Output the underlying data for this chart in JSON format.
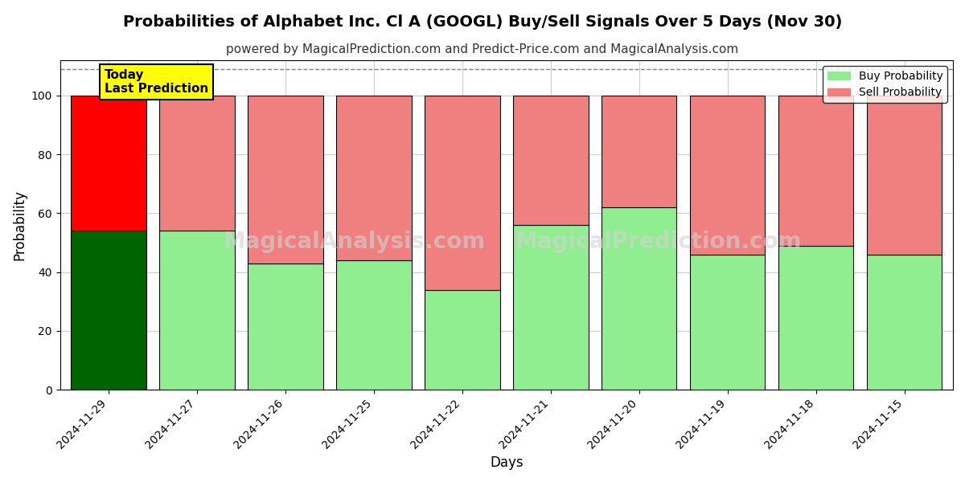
{
  "title": "Probabilities of Alphabet Inc. Cl A (GOOGL) Buy/Sell Signals Over 5 Days (Nov 30)",
  "subtitle": "powered by MagicalPrediction.com and Predict-Price.com and MagicalAnalysis.com",
  "xlabel": "Days",
  "ylabel": "Probability",
  "ylim": [
    0,
    112
  ],
  "yticks": [
    0,
    20,
    40,
    60,
    80,
    100
  ],
  "dates": [
    "2024-11-29",
    "2024-11-27",
    "2024-11-26",
    "2024-11-25",
    "2024-11-22",
    "2024-11-21",
    "2024-11-20",
    "2024-11-19",
    "2024-11-18",
    "2024-11-15"
  ],
  "buy_values": [
    54,
    54,
    43,
    44,
    34,
    56,
    62,
    46,
    49,
    46
  ],
  "sell_values": [
    46,
    46,
    57,
    56,
    66,
    44,
    38,
    54,
    51,
    54
  ],
  "bar_colors_buy": [
    "#006400",
    "#90EE90",
    "#90EE90",
    "#90EE90",
    "#90EE90",
    "#90EE90",
    "#90EE90",
    "#90EE90",
    "#90EE90",
    "#90EE90"
  ],
  "bar_colors_sell": [
    "#FF0000",
    "#F08080",
    "#F08080",
    "#F08080",
    "#F08080",
    "#F08080",
    "#F08080",
    "#F08080",
    "#F08080",
    "#F08080"
  ],
  "legend_buy_label": "Buy Probability",
  "legend_sell_label": "Sell Probability",
  "legend_buy_color": "#90EE90",
  "legend_sell_color": "#F08080",
  "background_color": "#ffffff",
  "grid_color": "#cccccc",
  "title_fontsize": 14,
  "subtitle_fontsize": 11,
  "axis_label_fontsize": 12,
  "dashed_line_y": 109,
  "today_box_text": "Today\nLast Prediction",
  "watermark1": "MagicalAnalysis.com",
  "watermark2": "MagicalPrediction.com"
}
